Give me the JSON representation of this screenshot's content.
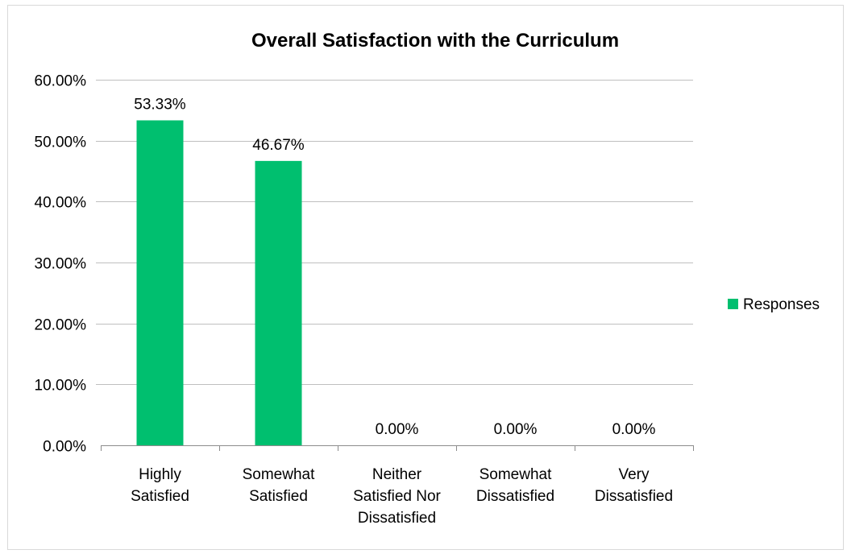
{
  "chart_data": {
    "type": "bar",
    "title": "Overall Satisfaction with the Curriculum",
    "categories": [
      [
        "Highly",
        "Satisfied"
      ],
      [
        "Somewhat",
        "Satisfied"
      ],
      [
        "Neither",
        "Satisfied Nor",
        "Dissatisfied"
      ],
      [
        "Somewhat",
        "Dissatisfied"
      ],
      [
        "Very",
        "Dissatisfied"
      ]
    ],
    "series": [
      {
        "name": "Responses",
        "color": "#00BF6F",
        "values": [
          53.33,
          46.67,
          0,
          0,
          0
        ],
        "labels": [
          "53.33%",
          "46.67%",
          "0.00%",
          "0.00%",
          "0.00%"
        ]
      }
    ],
    "yticks": [
      "0.00%",
      "10.00%",
      "20.00%",
      "30.00%",
      "40.00%",
      "50.00%",
      "60.00%"
    ],
    "ylim": [
      0,
      60
    ],
    "xlabel": "",
    "ylabel": "",
    "grid": true,
    "legend_position": "right"
  }
}
